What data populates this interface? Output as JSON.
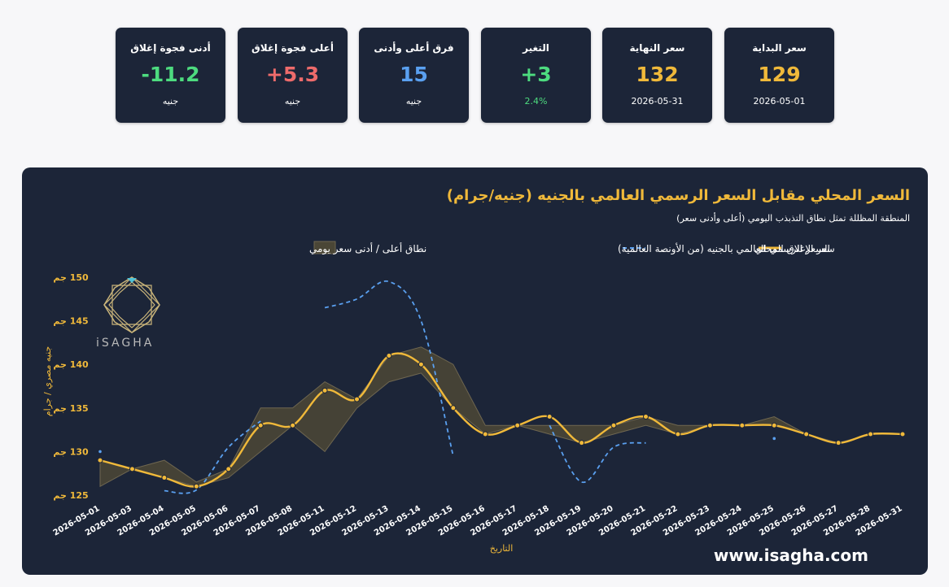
{
  "cards": [
    {
      "label": "سعر البداية",
      "value": "129",
      "sub": "2026-05-01",
      "color": "#f0b93a",
      "sub_color": "#ffffff"
    },
    {
      "label": "سعر النهاية",
      "value": "132",
      "sub": "2026-05-31",
      "color": "#f0b93a",
      "sub_color": "#ffffff"
    },
    {
      "label": "التغير",
      "value": "+3",
      "sub": "2.4%",
      "color": "#4ddb7f",
      "sub_color": "#4ddb7f"
    },
    {
      "label": "فرق أعلى وأدنى",
      "value": "15",
      "sub": "جنيه",
      "color": "#5aa0f0",
      "sub_color": "#ffffff"
    },
    {
      "label": "أعلى فجوة إغلاق",
      "value": "+5.3",
      "sub": "جنيه",
      "color": "#ee6b6b",
      "sub_color": "#ffffff"
    },
    {
      "label": "أدنى فجوة إغلاق",
      "value": "-11.2",
      "sub": "جنيه",
      "color": "#4ddb7f",
      "sub_color": "#ffffff"
    }
  ],
  "brand": {
    "logo_text": "iSAGHA",
    "website": "www.isagha.com"
  },
  "colors": {
    "gold": "#f0b93a",
    "blue": "#5aa0f0",
    "band": "#4a4636",
    "panel": "#1c2538"
  },
  "chart_data": {
    "type": "line",
    "title": "السعر المحلي مقابل السعر الرسمي العالمي بالجنيه (جنيه/جرام)",
    "subtitle": "المنطقة المظللة تمثل نطاق التذبذب اليومي (أعلى وأدنى سعر)",
    "xlabel": "التاريخ",
    "ylabel": "جنيه مصري / جرام",
    "ylim": [
      125,
      150
    ],
    "yticks": [
      {
        "v": 125,
        "label": "125 جم"
      },
      {
        "v": 130,
        "label": "130 جم"
      },
      {
        "v": 135,
        "label": "135 جم"
      },
      {
        "v": 140,
        "label": "140 جم"
      },
      {
        "v": 145,
        "label": "145 جم"
      },
      {
        "v": 150,
        "label": "150 جم"
      }
    ],
    "categories": [
      "2026-05-01",
      "2026-05-03",
      "2026-05-04",
      "2026-05-05",
      "2026-05-06",
      "2026-05-07",
      "2026-05-08",
      "2026-05-11",
      "2026-05-12",
      "2026-05-13",
      "2026-05-14",
      "2026-05-15",
      "2026-05-16",
      "2026-05-17",
      "2026-05-18",
      "2026-05-19",
      "2026-05-20",
      "2026-05-21",
      "2026-05-22",
      "2026-05-23",
      "2026-05-24",
      "2026-05-25",
      "2026-05-26",
      "2026-05-27",
      "2026-05-28",
      "2026-05-31"
    ],
    "legend": {
      "closing": "سعر الإغلاق المحلي",
      "world": "السعر الرسمي العالمي بالجنيه (من الأونصة العالمية)",
      "band": "نطاق أعلى / أدنى سعر يومي"
    },
    "local_close": [
      129,
      128,
      127,
      126,
      128,
      133,
      133,
      137,
      136,
      141,
      140,
      135,
      132,
      133,
      134,
      131,
      133,
      134,
      132,
      133,
      133,
      133,
      132,
      131,
      132,
      132
    ],
    "band_high": [
      129,
      128,
      129,
      126.5,
      128,
      135,
      135,
      138,
      136,
      141,
      142,
      140,
      133,
      133,
      133,
      133,
      133,
      134,
      133,
      133,
      133,
      134,
      132,
      131,
      132,
      132
    ],
    "band_low": [
      126,
      128,
      127,
      126,
      127,
      130,
      133,
      130,
      135,
      138,
      139,
      135,
      132,
      133,
      132,
      131,
      132,
      133,
      132,
      133,
      133,
      133,
      132,
      131,
      132,
      132
    ],
    "world_price": [
      [
        {
          "i": 0,
          "v": 130
        }
      ],
      [
        {
          "i": 2,
          "v": 125.5
        },
        {
          "i": 3,
          "v": 125.6
        },
        {
          "i": 4,
          "v": 130.5
        },
        {
          "i": 5,
          "v": 133.5
        }
      ],
      [
        {
          "i": 7,
          "v": 146.5
        },
        {
          "i": 8,
          "v": 147.5
        },
        {
          "i": 9,
          "v": 149.5
        },
        {
          "i": 10,
          "v": 145
        },
        {
          "i": 11,
          "v": 129.5
        }
      ],
      [
        {
          "i": 14,
          "v": 133
        },
        {
          "i": 15,
          "v": 126.5
        },
        {
          "i": 16,
          "v": 130.5
        },
        {
          "i": 17,
          "v": 131
        }
      ],
      [
        {
          "i": 21,
          "v": 131.5
        }
      ]
    ],
    "grid": false,
    "legend_position": "top-center"
  }
}
